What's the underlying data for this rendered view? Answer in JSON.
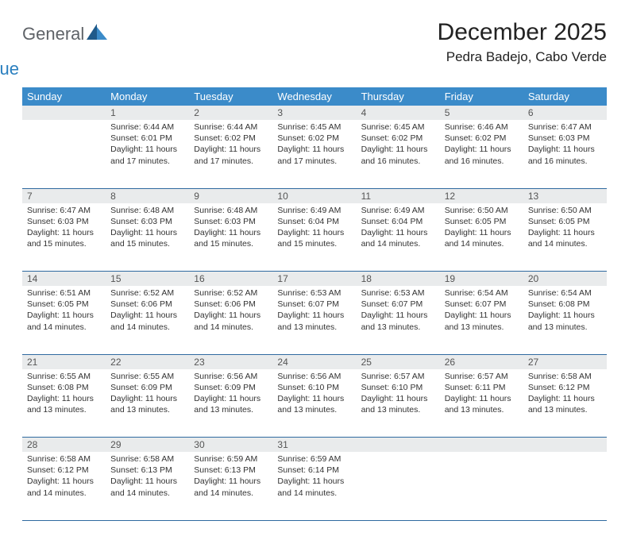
{
  "logo": {
    "word1": "General",
    "word2": "Blue"
  },
  "title": "December 2025",
  "location": "Pedra Badejo, Cabo Verde",
  "colors": {
    "header_bg": "#3b8bc9",
    "daynum_bg": "#e9ebec",
    "row_border": "#2f6aa0",
    "logo_gray": "#5f6368",
    "logo_blue": "#2a7fbf",
    "triangle_dark": "#1f5a8a",
    "triangle_light": "#3b8bc9"
  },
  "weekdays": [
    "Sunday",
    "Monday",
    "Tuesday",
    "Wednesday",
    "Thursday",
    "Friday",
    "Saturday"
  ],
  "weeks": [
    [
      null,
      {
        "n": "1",
        "sr": "6:44 AM",
        "ss": "6:01 PM",
        "dl": "11 hours and 17 minutes."
      },
      {
        "n": "2",
        "sr": "6:44 AM",
        "ss": "6:02 PM",
        "dl": "11 hours and 17 minutes."
      },
      {
        "n": "3",
        "sr": "6:45 AM",
        "ss": "6:02 PM",
        "dl": "11 hours and 17 minutes."
      },
      {
        "n": "4",
        "sr": "6:45 AM",
        "ss": "6:02 PM",
        "dl": "11 hours and 16 minutes."
      },
      {
        "n": "5",
        "sr": "6:46 AM",
        "ss": "6:02 PM",
        "dl": "11 hours and 16 minutes."
      },
      {
        "n": "6",
        "sr": "6:47 AM",
        "ss": "6:03 PM",
        "dl": "11 hours and 16 minutes."
      }
    ],
    [
      {
        "n": "7",
        "sr": "6:47 AM",
        "ss": "6:03 PM",
        "dl": "11 hours and 15 minutes."
      },
      {
        "n": "8",
        "sr": "6:48 AM",
        "ss": "6:03 PM",
        "dl": "11 hours and 15 minutes."
      },
      {
        "n": "9",
        "sr": "6:48 AM",
        "ss": "6:03 PM",
        "dl": "11 hours and 15 minutes."
      },
      {
        "n": "10",
        "sr": "6:49 AM",
        "ss": "6:04 PM",
        "dl": "11 hours and 15 minutes."
      },
      {
        "n": "11",
        "sr": "6:49 AM",
        "ss": "6:04 PM",
        "dl": "11 hours and 14 minutes."
      },
      {
        "n": "12",
        "sr": "6:50 AM",
        "ss": "6:05 PM",
        "dl": "11 hours and 14 minutes."
      },
      {
        "n": "13",
        "sr": "6:50 AM",
        "ss": "6:05 PM",
        "dl": "11 hours and 14 minutes."
      }
    ],
    [
      {
        "n": "14",
        "sr": "6:51 AM",
        "ss": "6:05 PM",
        "dl": "11 hours and 14 minutes."
      },
      {
        "n": "15",
        "sr": "6:52 AM",
        "ss": "6:06 PM",
        "dl": "11 hours and 14 minutes."
      },
      {
        "n": "16",
        "sr": "6:52 AM",
        "ss": "6:06 PM",
        "dl": "11 hours and 14 minutes."
      },
      {
        "n": "17",
        "sr": "6:53 AM",
        "ss": "6:07 PM",
        "dl": "11 hours and 13 minutes."
      },
      {
        "n": "18",
        "sr": "6:53 AM",
        "ss": "6:07 PM",
        "dl": "11 hours and 13 minutes."
      },
      {
        "n": "19",
        "sr": "6:54 AM",
        "ss": "6:07 PM",
        "dl": "11 hours and 13 minutes."
      },
      {
        "n": "20",
        "sr": "6:54 AM",
        "ss": "6:08 PM",
        "dl": "11 hours and 13 minutes."
      }
    ],
    [
      {
        "n": "21",
        "sr": "6:55 AM",
        "ss": "6:08 PM",
        "dl": "11 hours and 13 minutes."
      },
      {
        "n": "22",
        "sr": "6:55 AM",
        "ss": "6:09 PM",
        "dl": "11 hours and 13 minutes."
      },
      {
        "n": "23",
        "sr": "6:56 AM",
        "ss": "6:09 PM",
        "dl": "11 hours and 13 minutes."
      },
      {
        "n": "24",
        "sr": "6:56 AM",
        "ss": "6:10 PM",
        "dl": "11 hours and 13 minutes."
      },
      {
        "n": "25",
        "sr": "6:57 AM",
        "ss": "6:10 PM",
        "dl": "11 hours and 13 minutes."
      },
      {
        "n": "26",
        "sr": "6:57 AM",
        "ss": "6:11 PM",
        "dl": "11 hours and 13 minutes."
      },
      {
        "n": "27",
        "sr": "6:58 AM",
        "ss": "6:12 PM",
        "dl": "11 hours and 13 minutes."
      }
    ],
    [
      {
        "n": "28",
        "sr": "6:58 AM",
        "ss": "6:12 PM",
        "dl": "11 hours and 14 minutes."
      },
      {
        "n": "29",
        "sr": "6:58 AM",
        "ss": "6:13 PM",
        "dl": "11 hours and 14 minutes."
      },
      {
        "n": "30",
        "sr": "6:59 AM",
        "ss": "6:13 PM",
        "dl": "11 hours and 14 minutes."
      },
      {
        "n": "31",
        "sr": "6:59 AM",
        "ss": "6:14 PM",
        "dl": "11 hours and 14 minutes."
      },
      null,
      null,
      null
    ]
  ],
  "labels": {
    "sunrise": "Sunrise: ",
    "sunset": "Sunset: ",
    "daylight": "Daylight: "
  }
}
